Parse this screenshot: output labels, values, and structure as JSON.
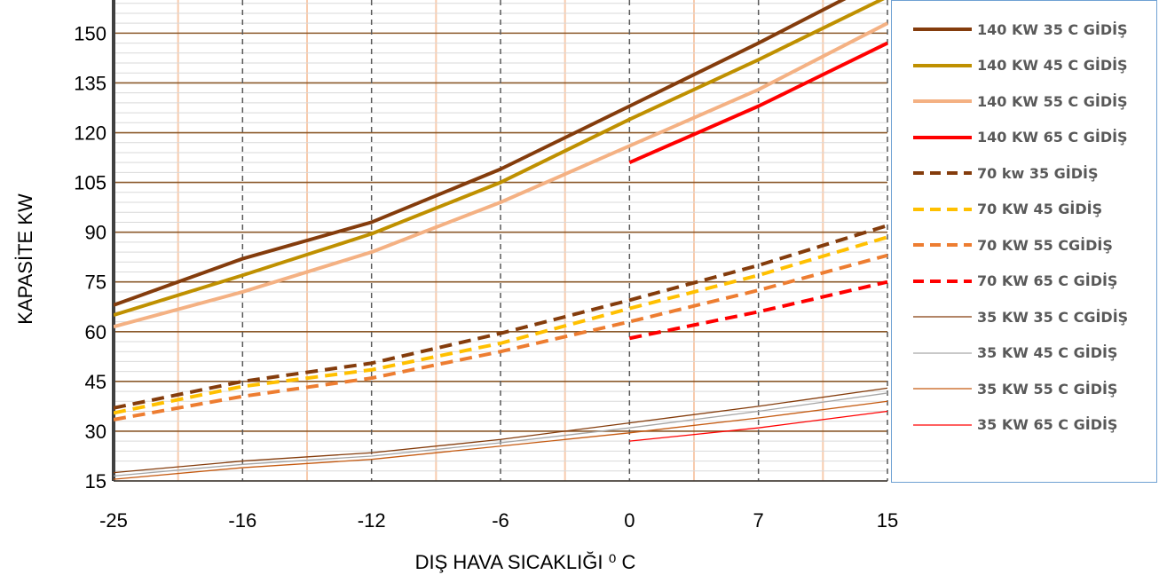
{
  "chart_data": {
    "type": "line",
    "title": "",
    "xlabel": "DIŞ HAVA SICAKLIĞI ⁰ C",
    "ylabel": "KAPASİTE KW",
    "x_tick_labels": [
      "-25",
      "-16",
      "-12",
      "-6",
      "0",
      "7",
      "15"
    ],
    "y_ticks": [
      15,
      30,
      45,
      60,
      75,
      90,
      105,
      120,
      135,
      150
    ],
    "ylim": [
      15,
      160
    ],
    "legend_position": "right",
    "grid": true,
    "series": [
      {
        "name": "140 KW 35 C GİDİŞ",
        "color": "#843c0c",
        "dash": "solid",
        "width": 4,
        "x": [
          "-25",
          "-16",
          "-12",
          "-6",
          "0",
          "7",
          "15"
        ],
        "values": [
          68,
          82,
          93,
          109,
          128,
          147,
          167
        ]
      },
      {
        "name": "140 KW 45 C GİDİŞ",
        "color": "#bf9000",
        "dash": "solid",
        "width": 4,
        "x": [
          "-25",
          "-16",
          "-12",
          "-6",
          "0",
          "7",
          "15"
        ],
        "values": [
          65,
          77,
          89.5,
          105,
          124,
          142,
          161
        ]
      },
      {
        "name": "140 KW 55 C GİDİŞ",
        "color": "#f4b183",
        "dash": "solid",
        "width": 4,
        "x": [
          "-25",
          "-16",
          "-12",
          "-6",
          "0",
          "7",
          "15"
        ],
        "values": [
          61.5,
          72,
          84,
          99,
          116,
          133,
          153
        ]
      },
      {
        "name": "140 KW 65 C GİDİŞ",
        "color": "#ff0000",
        "dash": "solid",
        "width": 4,
        "x": [
          "0",
          "7",
          "15"
        ],
        "values": [
          111,
          128,
          147
        ]
      },
      {
        "name": "70 kw 35 GİDİŞ",
        "color": "#843c0c",
        "dash": "dash",
        "width": 4,
        "x": [
          "-25",
          "-16",
          "-12",
          "-6",
          "0",
          "7",
          "15"
        ],
        "values": [
          37,
          45,
          50.5,
          59.5,
          69.5,
          80,
          92
        ]
      },
      {
        "name": "70 KW 45 GİDİŞ",
        "color": "#ffc000",
        "dash": "dash",
        "width": 4,
        "x": [
          "-25",
          "-16",
          "-12",
          "-6",
          "0",
          "7",
          "15"
        ],
        "values": [
          35.5,
          43.5,
          48.5,
          56.5,
          67,
          77,
          88.5
        ]
      },
      {
        "name": "70 KW 55 CGİDİŞ",
        "color": "#ed7d31",
        "dash": "dash",
        "width": 4,
        "x": [
          "-25",
          "-16",
          "-12",
          "-6",
          "0",
          "7",
          "15"
        ],
        "values": [
          33.5,
          40.5,
          46,
          54,
          63,
          72.5,
          83
        ]
      },
      {
        "name": "70 KW 65 C GİDİŞ",
        "color": "#ff0000",
        "dash": "dash",
        "width": 4,
        "x": [
          "0",
          "7",
          "15"
        ],
        "values": [
          58,
          66,
          75
        ]
      },
      {
        "name": "35 KW 35 C CGİDİŞ",
        "color": "#843c0c",
        "dash": "solid",
        "width": 1.3,
        "x": [
          "-25",
          "-16",
          "-12",
          "-6",
          "0",
          "7",
          "15"
        ],
        "values": [
          17.5,
          21,
          23.5,
          27.5,
          32.5,
          37.5,
          43
        ]
      },
      {
        "name": "35 KW 45 C GİDİŞ",
        "color": "#a6a6a6",
        "dash": "solid",
        "width": 1.3,
        "x": [
          "-25",
          "-16",
          "-12",
          "-6",
          "0",
          "7",
          "15"
        ],
        "values": [
          16.5,
          20,
          22.5,
          26.5,
          31,
          36,
          41.5
        ]
      },
      {
        "name": "35 KW 55 C GİDİŞ",
        "color": "#c55a11",
        "dash": "solid",
        "width": 1.3,
        "x": [
          "-25",
          "-16",
          "-12",
          "-6",
          "0",
          "7",
          "15"
        ],
        "values": [
          15.5,
          19,
          21.5,
          25.5,
          29.5,
          34,
          39
        ]
      },
      {
        "name": "35 KW 65 C GİDİŞ",
        "color": "#ff0000",
        "dash": "solid",
        "width": 1.3,
        "x": [
          "0",
          "7",
          "15"
        ],
        "values": [
          27,
          31,
          36
        ]
      }
    ]
  }
}
